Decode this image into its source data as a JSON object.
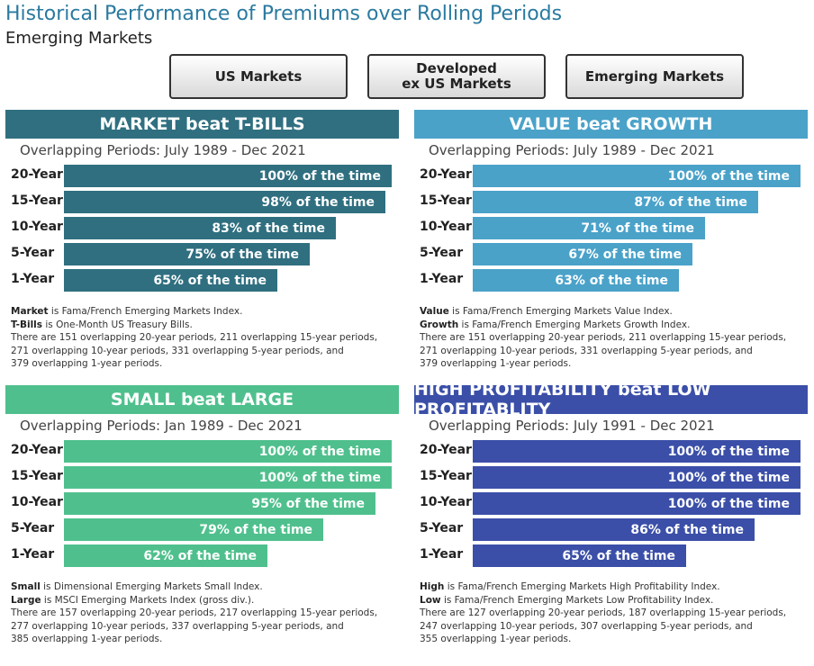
{
  "title": "Historical Performance of Premiums over Rolling Periods",
  "subtitle": "Emerging Markets",
  "tabs": [
    {
      "label": "US Markets"
    },
    {
      "label": "Developed\nex US Markets"
    },
    {
      "label": "Emerging Markets"
    }
  ],
  "chart_data": [
    {
      "type": "bar",
      "title": "MARKET beat T-BILLS",
      "period": "Overlapping Periods: July 1989 - Dec 2021",
      "color": "#2f6f80",
      "categories": [
        "20-Year",
        "15-Year",
        "10-Year",
        "5-Year",
        "1-Year"
      ],
      "values": [
        100,
        98,
        83,
        75,
        65
      ],
      "labels": [
        "100% of the time",
        "98% of the time",
        "83% of the time",
        "75% of the time",
        "65% of the time"
      ],
      "xlim": [
        0,
        100
      ],
      "notes": [
        {
          "bold": "Market",
          "text": " is Fama/French Emerging Markets Index."
        },
        {
          "bold": "T-Bills",
          "text": " is One-Month US Treasury Bills."
        },
        {
          "bold": "",
          "text": "There are 151 overlapping 20-year periods, 211 overlapping 15-year periods,"
        },
        {
          "bold": "",
          "text": "271 overlapping 10-year periods, 331 overlapping 5-year periods, and"
        },
        {
          "bold": "",
          "text": "379 overlapping 1-year periods."
        }
      ]
    },
    {
      "type": "bar",
      "title": "VALUE beat GROWTH",
      "period": "Overlapping Periods: July 1989 - Dec 2021",
      "color": "#4aa2c9",
      "categories": [
        "20-Year",
        "15-Year",
        "10-Year",
        "5-Year",
        "1-Year"
      ],
      "values": [
        100,
        87,
        71,
        67,
        63
      ],
      "labels": [
        "100% of the time",
        "87% of the time",
        "71% of the time",
        "67% of the time",
        "63% of the time"
      ],
      "xlim": [
        0,
        100
      ],
      "notes": [
        {
          "bold": "Value",
          "text": " is Fama/French Emerging Markets Value Index."
        },
        {
          "bold": "Growth",
          "text": " is Fama/French Emerging Markets Growth Index."
        },
        {
          "bold": "",
          "text": "There are 151 overlapping 20-year periods, 211 overlapping 15-year periods,"
        },
        {
          "bold": "",
          "text": "271 overlapping 10-year periods, 331 overlapping 5-year periods, and"
        },
        {
          "bold": "",
          "text": "379 overlapping 1-year periods."
        }
      ]
    },
    {
      "type": "bar",
      "title": "SMALL beat LARGE",
      "period": "Overlapping Periods: Jan 1989 - Dec 2021",
      "color": "#4fc08d",
      "categories": [
        "20-Year",
        "15-Year",
        "10-Year",
        "5-Year",
        "1-Year"
      ],
      "values": [
        100,
        100,
        95,
        79,
        62
      ],
      "labels": [
        "100% of the time",
        "100% of the time",
        "95% of the time",
        "79% of the time",
        "62% of the time"
      ],
      "xlim": [
        0,
        100
      ],
      "notes": [
        {
          "bold": "Small",
          "text": " is Dimensional Emerging Markets Small Index."
        },
        {
          "bold": "Large",
          "text": " is MSCI Emerging Markets Index (gross div.)."
        },
        {
          "bold": "",
          "text": "There are 157 overlapping 20-year periods, 217 overlapping 15-year periods,"
        },
        {
          "bold": "",
          "text": "277 overlapping 10-year periods, 337 overlapping 5-year periods, and"
        },
        {
          "bold": "",
          "text": "385 overlapping 1-year periods."
        }
      ]
    },
    {
      "type": "bar",
      "title": "HIGH PROFITABILITY beat LOW PROFITABLITY",
      "period": "Overlapping Periods: July 1991 - Dec 2021",
      "color": "#3b4fa8",
      "categories": [
        "20-Year",
        "15-Year",
        "10-Year",
        "5-Year",
        "1-Year"
      ],
      "values": [
        100,
        100,
        100,
        86,
        65
      ],
      "labels": [
        "100% of the time",
        "100% of the time",
        "100% of the time",
        "86% of the time",
        "65% of the time"
      ],
      "xlim": [
        0,
        100
      ],
      "notes": [
        {
          "bold": "High",
          "text": " is Fama/French Emerging Markets High Profitability Index."
        },
        {
          "bold": "Low",
          "text": " is Fama/French Emerging Markets Low Profitability Index."
        },
        {
          "bold": "",
          "text": "There are 127 overlapping 20-year periods, 187 overlapping 15-year periods,"
        },
        {
          "bold": "",
          "text": "247 overlapping 10-year periods, 307 overlapping 5-year periods, and"
        },
        {
          "bold": "",
          "text": "355 overlapping 1-year periods."
        }
      ]
    }
  ]
}
